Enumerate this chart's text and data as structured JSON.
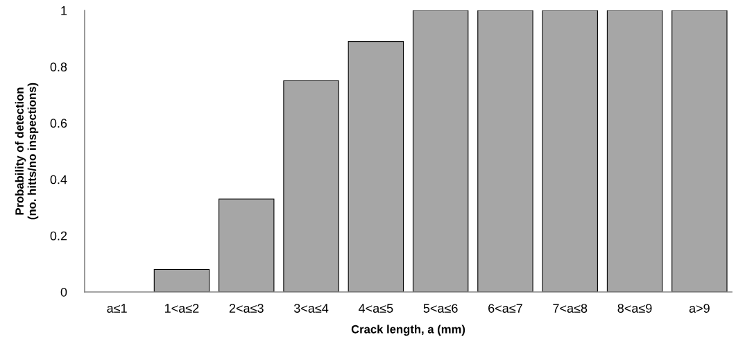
{
  "chart_data": {
    "type": "bar",
    "categories": [
      "a≤1",
      "1<a≤2",
      "2<a≤3",
      "3<a≤4",
      "4<a≤5",
      "5<a≤6",
      "6<a≤7",
      "7<a≤8",
      "8<a≤9",
      "a>9"
    ],
    "values": [
      0,
      0.08,
      0.33,
      0.75,
      0.89,
      1,
      1,
      1,
      1,
      1
    ],
    "color": "#a6a6a6",
    "xlabel": "Crack length, a (mm)",
    "ylabel": "Probability of detection\n(no. hitts/no inspections)",
    "ylim": [
      0,
      1
    ],
    "yticks": [
      0,
      0.2,
      0.4,
      0.6,
      0.8,
      1
    ],
    "grid": false
  }
}
